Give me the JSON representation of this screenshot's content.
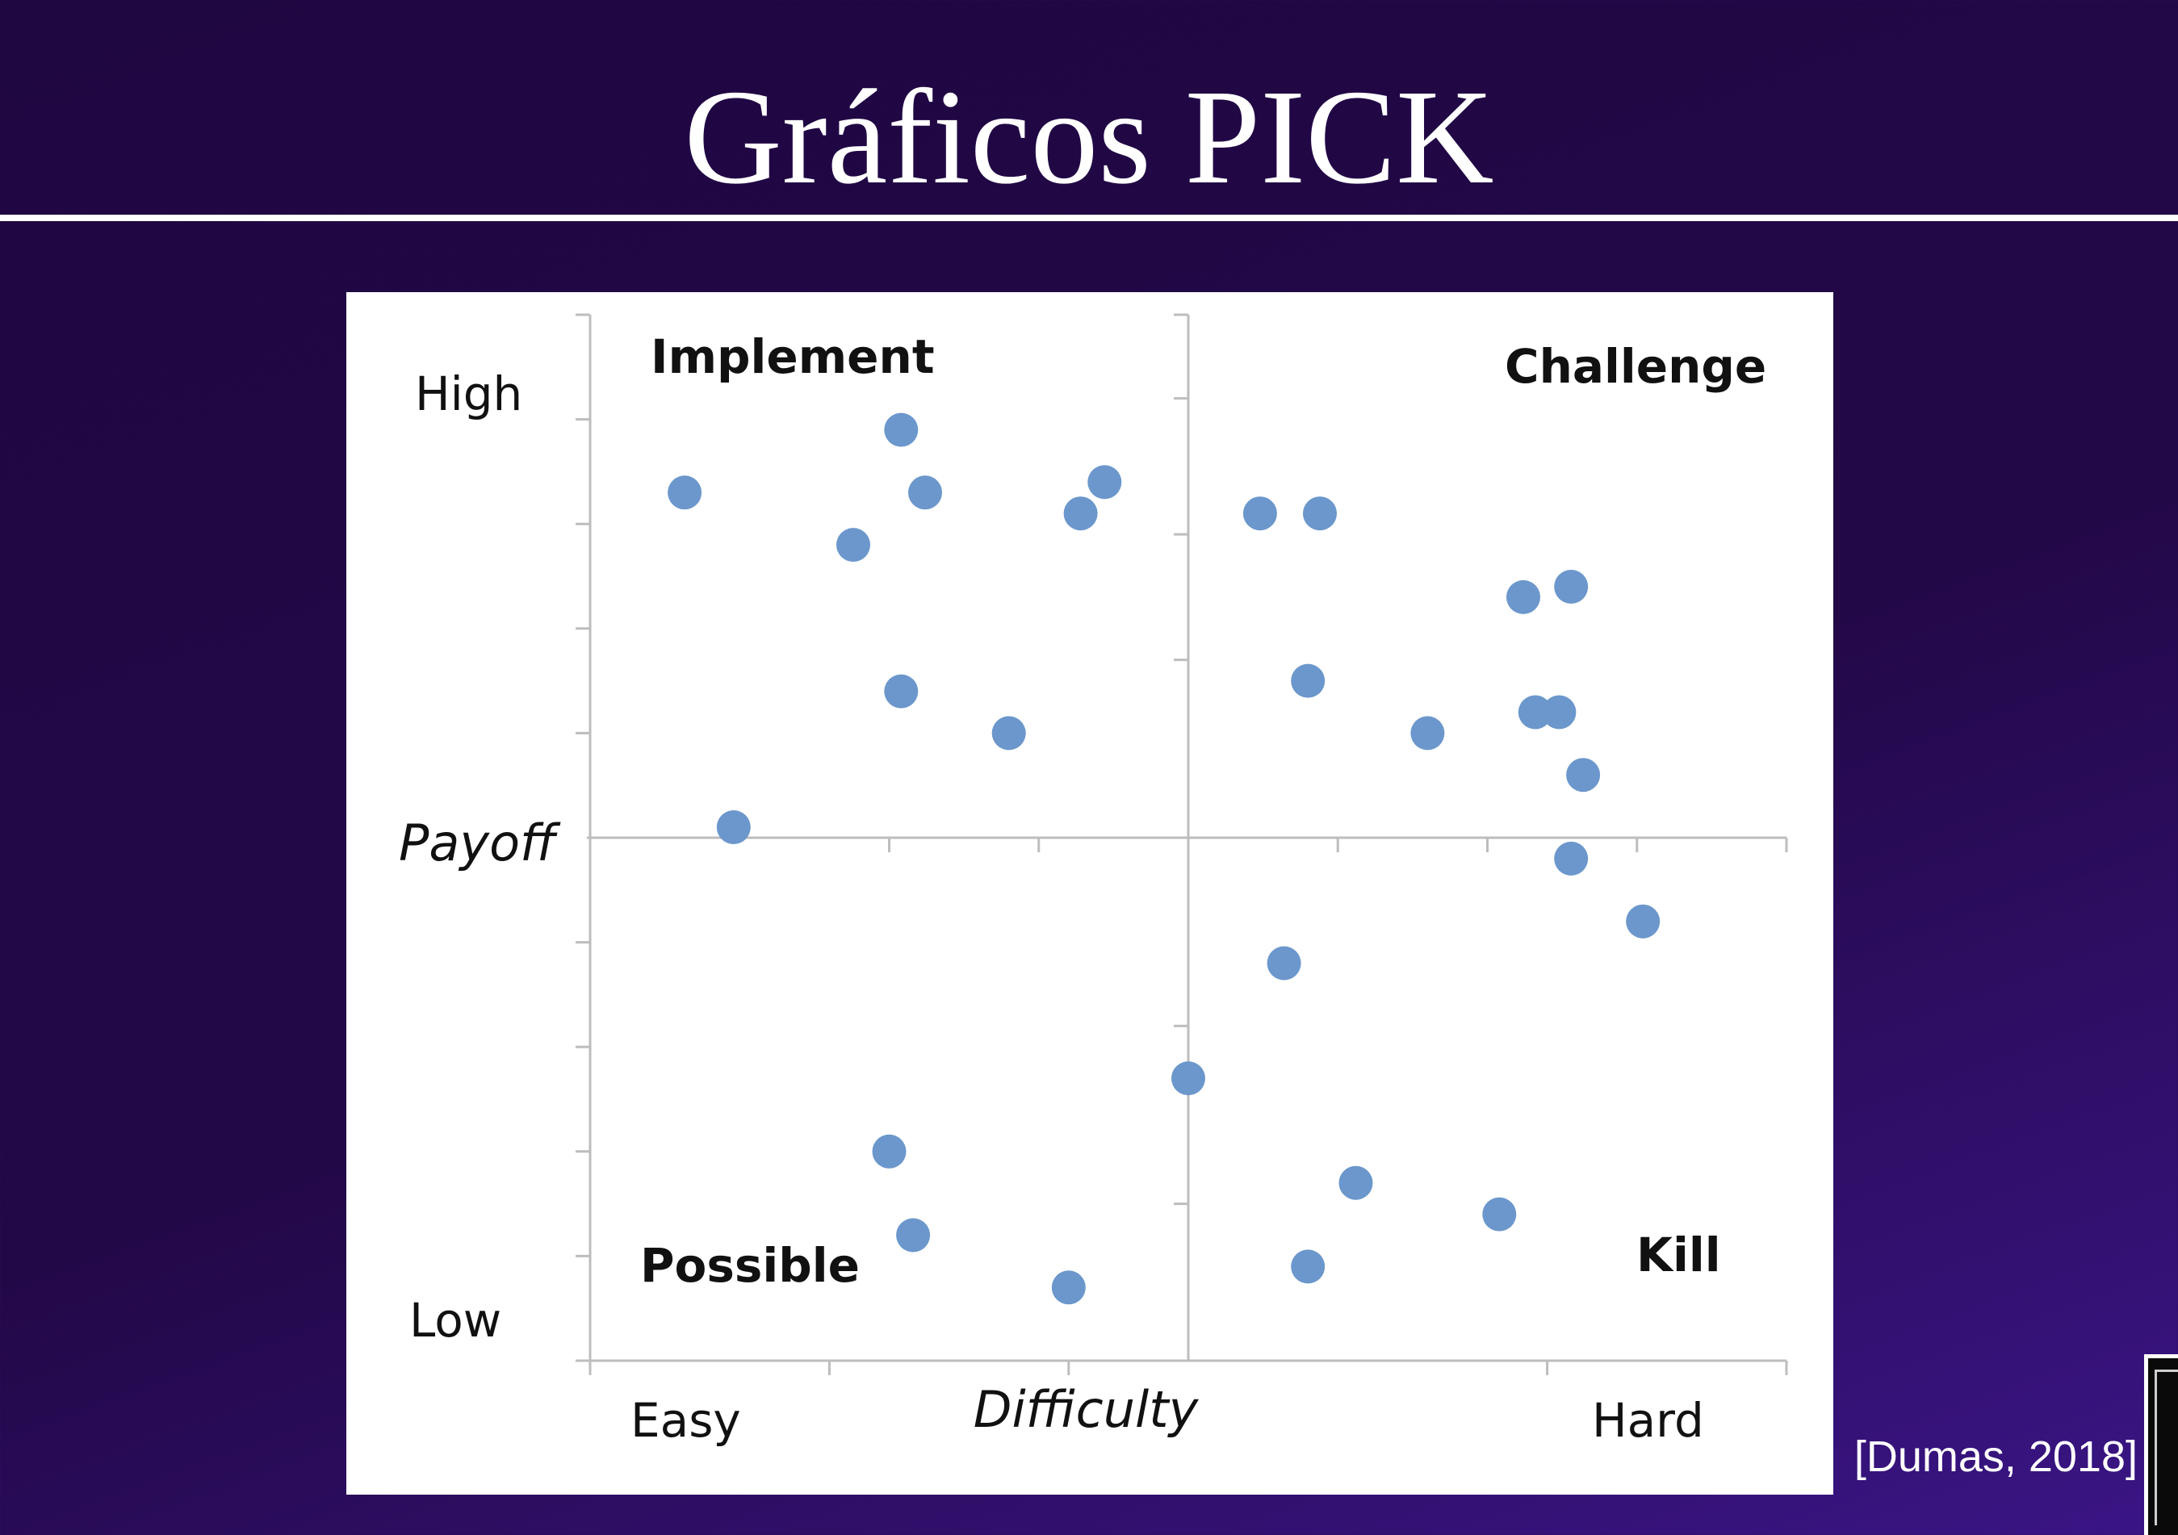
{
  "slide": {
    "title": "Gráficos PICK",
    "citation": "[Dumas, 2018]"
  },
  "colors": {
    "background": "#230848",
    "title_text": "#ffffff",
    "point": "#6b97cc",
    "axis": "#bdbdbd"
  },
  "chart_data": {
    "type": "scatter",
    "title": "",
    "xlabel": "Difficulty",
    "ylabel": "Payoff",
    "xlim": [
      0,
      10
    ],
    "ylim": [
      0,
      10
    ],
    "x_tick_labels": {
      "low": "Easy",
      "high": "Hard"
    },
    "y_tick_labels": {
      "high": "High",
      "low": "Low"
    },
    "quadrants": {
      "top_left": "Implement",
      "top_right": "Challenge",
      "bottom_left": "Possible",
      "bottom_right": "Kill"
    },
    "grid": false,
    "points": [
      {
        "x": 0.79,
        "y": 8.3
      },
      {
        "x": 2.6,
        "y": 8.9
      },
      {
        "x": 2.8,
        "y": 8.3
      },
      {
        "x": 2.2,
        "y": 7.8
      },
      {
        "x": 4.1,
        "y": 8.1
      },
      {
        "x": 4.3,
        "y": 8.4
      },
      {
        "x": 2.6,
        "y": 6.4
      },
      {
        "x": 3.5,
        "y": 6.0
      },
      {
        "x": 1.2,
        "y": 5.1
      },
      {
        "x": 5.6,
        "y": 8.1
      },
      {
        "x": 6.1,
        "y": 8.1
      },
      {
        "x": 7.8,
        "y": 7.3
      },
      {
        "x": 8.2,
        "y": 7.4
      },
      {
        "x": 6.0,
        "y": 6.5
      },
      {
        "x": 7.0,
        "y": 6.0
      },
      {
        "x": 7.9,
        "y": 6.2
      },
      {
        "x": 8.1,
        "y": 6.2
      },
      {
        "x": 8.3,
        "y": 5.6
      },
      {
        "x": 8.2,
        "y": 4.8
      },
      {
        "x": 8.8,
        "y": 4.2
      },
      {
        "x": 5.8,
        "y": 3.8
      },
      {
        "x": 5.0,
        "y": 2.7
      },
      {
        "x": 2.5,
        "y": 2.0
      },
      {
        "x": 2.7,
        "y": 1.2
      },
      {
        "x": 4.0,
        "y": 0.7
      },
      {
        "x": 6.4,
        "y": 1.7
      },
      {
        "x": 7.6,
        "y": 1.4
      },
      {
        "x": 6.0,
        "y": 0.9
      }
    ]
  }
}
